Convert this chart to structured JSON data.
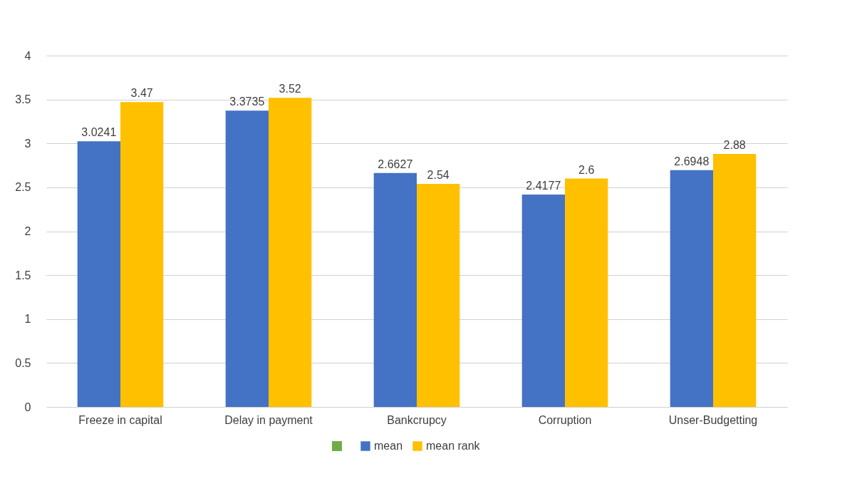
{
  "chart_data": {
    "type": "bar",
    "categories": [
      "Freeze in capital",
      "Delay in payment",
      "Bankcrupcy",
      "Corruption",
      "Unser-Budgetting"
    ],
    "series": [
      {
        "name": "mean",
        "color": "#4472c4",
        "values": [
          3.0241,
          3.3735,
          2.6627,
          2.4177,
          2.6948
        ]
      },
      {
        "name": "mean rank",
        "color": "#ffc000",
        "values": [
          3.47,
          3.52,
          2.54,
          2.6,
          2.88
        ]
      }
    ],
    "ylim": [
      0,
      4
    ],
    "yticks": [
      0,
      0.5,
      1,
      1.5,
      2,
      2.5,
      3,
      3.5,
      4
    ],
    "grid": true,
    "legend": "bottom",
    "data_labels": true
  }
}
